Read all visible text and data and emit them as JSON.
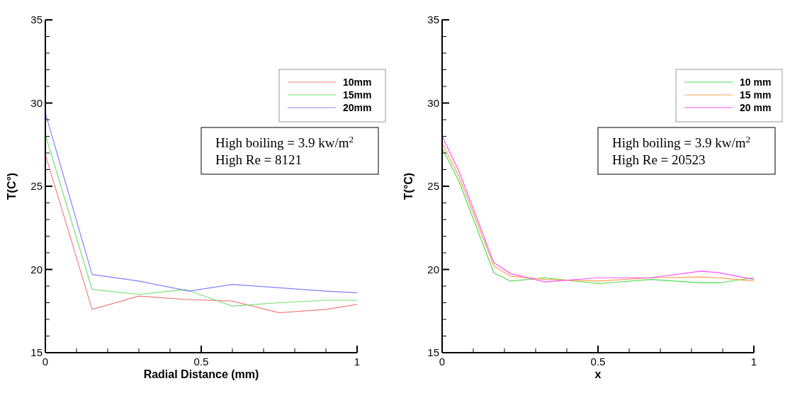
{
  "chart_data": [
    {
      "type": "line",
      "xlabel": "Radial Distance (mm)",
      "ylabel": "T(C°)",
      "xlim": [
        0,
        1
      ],
      "ylim": [
        15,
        35
      ],
      "xticks": [
        0,
        {
          "value": 0.1,
          "label": null
        },
        {
          "value": 0.2,
          "label": null
        },
        {
          "value": 0.3,
          "label": null
        },
        {
          "value": 0.4,
          "label": null
        },
        0.5,
        {
          "value": 0.6,
          "label": null
        },
        {
          "value": 0.7,
          "label": null
        },
        {
          "value": 0.8,
          "label": null
        },
        {
          "value": 0.9,
          "label": null
        },
        1
      ],
      "yticks": [
        15,
        {
          "value": 16,
          "label": null
        },
        {
          "value": 17,
          "label": null
        },
        {
          "value": 18,
          "label": null
        },
        {
          "value": 19,
          "label": null
        },
        20,
        {
          "value": 21,
          "label": null
        },
        {
          "value": 22,
          "label": null
        },
        {
          "value": 23,
          "label": null
        },
        {
          "value": 24,
          "label": null
        },
        25,
        {
          "value": 26,
          "label": null
        },
        {
          "value": 27,
          "label": null
        },
        {
          "value": 28,
          "label": null
        },
        {
          "value": 29,
          "label": null
        },
        30,
        {
          "value": 31,
          "label": null
        },
        {
          "value": 32,
          "label": null
        },
        {
          "value": 33,
          "label": null
        },
        {
          "value": 34,
          "label": null
        },
        35
      ],
      "legend": "top right",
      "grid": false,
      "annotations": [
        "High boiling = 3.9 kw/m$^{2}$",
        "High Re = 8121"
      ],
      "series": [
        {
          "name": "10mm",
          "color": "#f08080",
          "x": [
            0,
            0.15,
            0.3,
            0.45,
            0.6,
            0.75,
            0.9,
            1
          ],
          "values": [
            26.9,
            17.6,
            18.4,
            18.2,
            18.1,
            17.4,
            17.6,
            17.9
          ]
        },
        {
          "name": "15mm",
          "color": "#70e070",
          "x": [
            0,
            0.15,
            0.3,
            0.45,
            0.6,
            0.75,
            0.9,
            1
          ],
          "values": [
            28.1,
            18.8,
            18.5,
            18.8,
            17.8,
            18,
            18.15,
            18.15
          ]
        },
        {
          "name": "20mm",
          "color": "#8080ff",
          "x": [
            0,
            0.15,
            0.3,
            0.46,
            0.6,
            0.75,
            0.9,
            1
          ],
          "values": [
            29.4,
            19.7,
            19.3,
            18.7,
            19.1,
            18.9,
            18.7,
            18.6
          ]
        }
      ]
    },
    {
      "type": "line",
      "xlabel": "x",
      "ylabel": "T(°C)",
      "xlim": [
        0,
        1
      ],
      "ylim": [
        15,
        35
      ],
      "xticks": [
        0,
        {
          "value": 0.1,
          "label": null
        },
        {
          "value": 0.2,
          "label": null
        },
        {
          "value": 0.3,
          "label": null
        },
        {
          "value": 0.4,
          "label": null
        },
        0.5,
        {
          "value": 0.6,
          "label": null
        },
        {
          "value": 0.7,
          "label": null
        },
        {
          "value": 0.8,
          "label": null
        },
        {
          "value": 0.9,
          "label": null
        },
        1
      ],
      "yticks": [
        15,
        {
          "value": 16,
          "label": null
        },
        {
          "value": 17,
          "label": null
        },
        {
          "value": 18,
          "label": null
        },
        {
          "value": 19,
          "label": null
        },
        20,
        {
          "value": 21,
          "label": null
        },
        {
          "value": 22,
          "label": null
        },
        {
          "value": 23,
          "label": null
        },
        {
          "value": 24,
          "label": null
        },
        25,
        {
          "value": 26,
          "label": null
        },
        {
          "value": 27,
          "label": null
        },
        {
          "value": 28,
          "label": null
        },
        {
          "value": 29,
          "label": null
        },
        30,
        {
          "value": 31,
          "label": null
        },
        {
          "value": 32,
          "label": null
        },
        {
          "value": 33,
          "label": null
        },
        {
          "value": 34,
          "label": null
        },
        35
      ],
      "legend": "top right",
      "grid": false,
      "annotations": [
        "High boiling = 3.9 kw/m$^{2}$",
        "High Re = 20523"
      ],
      "series": [
        {
          "name": "10 mm",
          "color": "#50dc50",
          "x": [
            0,
            0.054,
            0.166,
            0.22,
            0.33,
            0.5,
            0.67,
            0.83,
            0.89,
            1
          ],
          "values": [
            27.3,
            25.3,
            19.8,
            19.3,
            19.5,
            19.15,
            19.4,
            19.2,
            19.2,
            19.5
          ]
        },
        {
          "name": "15 mm",
          "color": "#ffa050",
          "x": [
            0,
            0.054,
            0.166,
            0.22,
            0.33,
            0.5,
            0.67,
            0.83,
            0.89,
            1
          ],
          "values": [
            27.6,
            25.6,
            20.2,
            19.6,
            19.4,
            19.3,
            19.5,
            19.55,
            19.5,
            19.3
          ]
        },
        {
          "name": "20 mm",
          "color": "#ff50ff",
          "x": [
            0,
            0.054,
            0.166,
            0.22,
            0.33,
            0.5,
            0.67,
            0.83,
            0.89,
            1
          ],
          "values": [
            28,
            25.9,
            20.4,
            19.75,
            19.25,
            19.5,
            19.5,
            19.9,
            19.8,
            19.4
          ]
        }
      ]
    }
  ]
}
